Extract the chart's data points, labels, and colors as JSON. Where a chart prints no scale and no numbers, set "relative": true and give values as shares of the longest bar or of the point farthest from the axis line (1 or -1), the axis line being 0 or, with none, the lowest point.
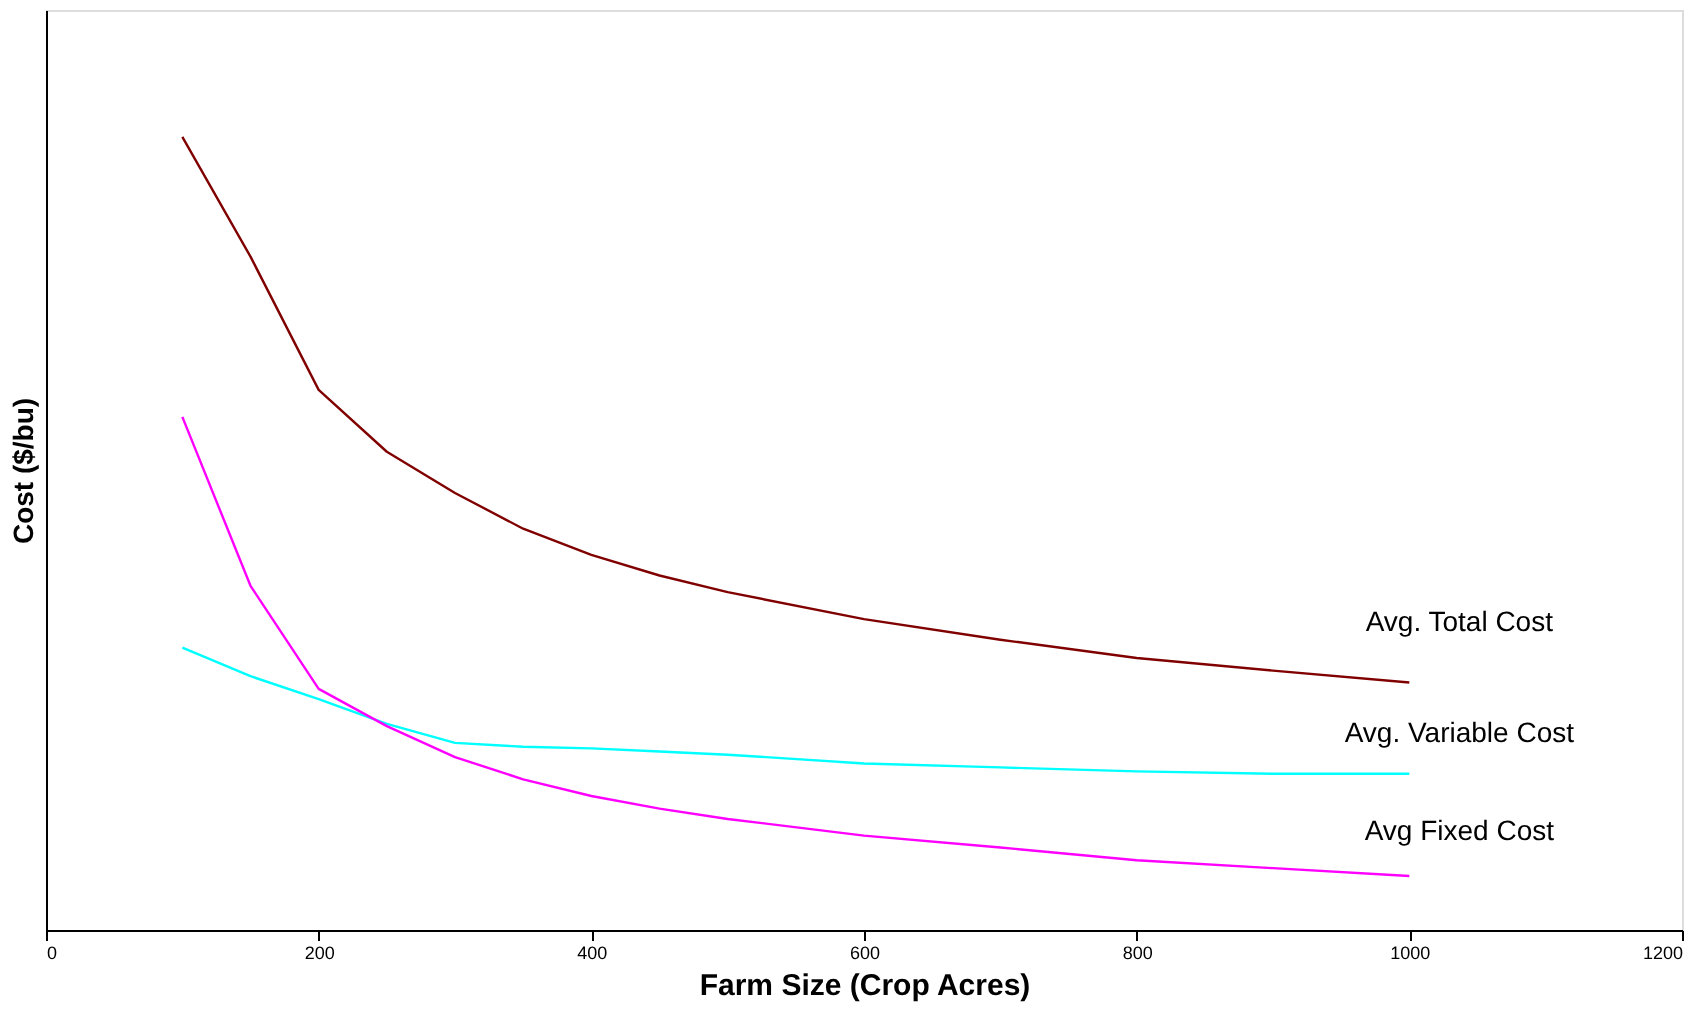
{
  "chart_data": {
    "type": "line",
    "relative": true,
    "xlabel": "Farm Size (Crop Acres)",
    "ylabel": "Cost ($/bu)",
    "xlim": [
      0,
      1200
    ],
    "xticks": [
      0,
      200,
      400,
      600,
      800,
      1000,
      1200
    ],
    "legend": false,
    "grid": false,
    "marker": "none",
    "line_style": "solid",
    "x": [
      100,
      150,
      200,
      250,
      300,
      350,
      400,
      450,
      500,
      600,
      700,
      800,
      900,
      1000
    ],
    "series": [
      {
        "name": "Avg. Total Cost",
        "color": "#800000",
        "values": [
          1,
          0.849,
          0.681,
          0.603,
          0.551,
          0.506,
          0.473,
          0.447,
          0.426,
          0.392,
          0.366,
          0.343,
          0.327,
          0.312
        ]
      },
      {
        "name": "Avg. Variable Cost",
        "color": "#00ffff",
        "values": [
          0.356,
          0.32,
          0.291,
          0.26,
          0.236,
          0.231,
          0.229,
          0.225,
          0.221,
          0.21,
          0.205,
          0.2,
          0.197,
          0.197
        ]
      },
      {
        "name": "Avg Fixed Cost",
        "color": "#ff00ff",
        "values": [
          0.647,
          0.434,
          0.304,
          0.257,
          0.218,
          0.19,
          0.169,
          0.153,
          0.14,
          0.119,
          0.104,
          0.088,
          0.078,
          0.068
        ]
      }
    ]
  }
}
